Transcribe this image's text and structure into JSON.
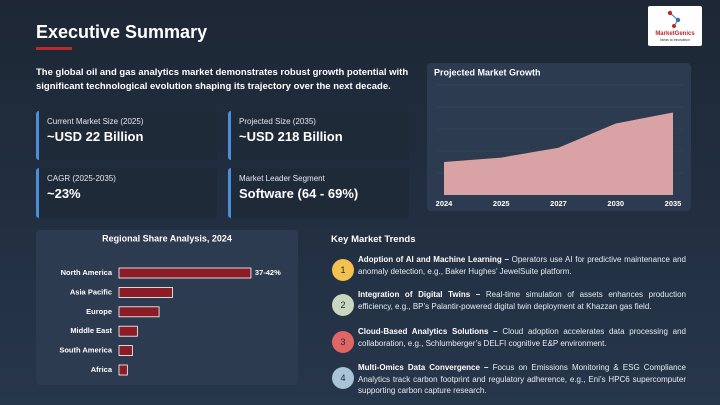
{
  "header": {
    "title": "Executive Summary",
    "logo": {
      "name": "MarketGenics",
      "tagline": "Ideas to Innovation"
    }
  },
  "intro": "The global oil and gas analytics market demonstrates robust growth potential with significant technological evolution shaping its trajectory over the next decade.",
  "cards": [
    {
      "label": "Current Market Size (2025)",
      "value": "~USD 22 Billion"
    },
    {
      "label": "Projected Size (2035)",
      "value": "~USD 218 Billion"
    },
    {
      "label": "CAGR (2025-2035)",
      "value": "~23%"
    },
    {
      "label": "Market Leader Segment",
      "value": "Software (64 - 69%)"
    }
  ],
  "chart_data": [
    {
      "type": "area",
      "title": "Projected Market Growth",
      "categories": [
        "2024",
        "2025",
        "2027",
        "2030",
        "2035"
      ],
      "values": [
        30,
        34,
        43,
        65,
        75
      ],
      "color": "#d9a3a5",
      "ylim": [
        0,
        100
      ]
    },
    {
      "type": "hbar",
      "title": "Regional Share Analysis, 2024",
      "categories": [
        "North America",
        "Asia Pacific",
        "Europe",
        "Middle East",
        "South America",
        "Africa"
      ],
      "values": [
        39.5,
        16,
        12,
        5.5,
        4,
        2.5
      ],
      "value_labels": [
        "37-42%",
        null,
        null,
        null,
        null,
        null
      ],
      "color": "#8b1c25",
      "xlim": [
        0,
        50
      ]
    }
  ],
  "trends": {
    "title": "Key Market Trends",
    "items": [
      {
        "number": "1",
        "title": "Adoption of AI and Machine Learning –",
        "text": "Operators use AI for predictive maintenance and anomaly detection, e.g., Baker Hughes’ JewelSuite platform."
      },
      {
        "number": "2",
        "title": "Integration of Digital Twins –",
        "text": "Real-time simulation of assets enhances production efficiency, e.g., BP’s Palantir-powered digital twin deployment at Khazzan gas field."
      },
      {
        "number": "3",
        "title": "Cloud-Based Analytics Solutions –",
        "text": "Cloud adoption accelerates data processing and collaboration, e.g., Schlumberger’s DELFI cognitive E&P environment."
      },
      {
        "number": "4",
        "title": "Multi-Omics Data Convergence –",
        "text": "Focus on Emissions Monitoring & ESG Compliance Analytics track carbon footprint and regulatory adherence, e.g., Eni’s HPC6 supercomputer supporting carbon capture research."
      }
    ]
  }
}
